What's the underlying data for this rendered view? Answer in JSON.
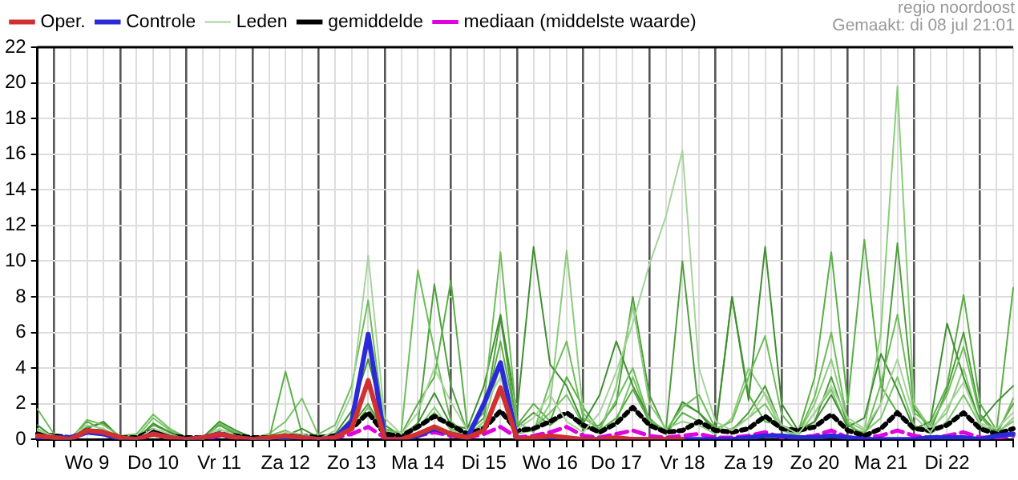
{
  "chart_data": {
    "type": "line",
    "annotations": [
      "regio noordoost",
      "Gemaakt: di 08 jul 21:01"
    ],
    "categories": [
      null,
      null,
      null,
      "Wo 9",
      null,
      null,
      null,
      "Do 10",
      null,
      null,
      null,
      "Vr 11",
      null,
      null,
      null,
      "Za 12",
      null,
      null,
      null,
      "Zo 13",
      null,
      null,
      null,
      "Ma 14",
      null,
      null,
      null,
      "Di 15",
      null,
      null,
      null,
      "Wo 16",
      null,
      null,
      null,
      "Do 17",
      null,
      null,
      null,
      "Vr 18",
      null,
      null,
      null,
      "Za 19",
      null,
      null,
      null,
      "Zo 20",
      null,
      null,
      null,
      "Ma 21",
      null,
      null,
      null,
      "Di 22",
      null,
      null,
      null,
      null
    ],
    "ylim": [
      0,
      22
    ],
    "yticks": [
      0,
      2,
      4,
      6,
      8,
      10,
      12,
      14,
      16,
      18,
      20,
      22
    ],
    "grid": true,
    "legend": "top left",
    "marker": "none",
    "series": [
      {
        "name": "Oper.",
        "color": "#d03030",
        "line_style": "solid",
        "values": [
          0.2,
          0.1,
          0,
          0.5,
          0.4,
          0.1,
          0,
          0.3,
          0.1,
          0,
          0.1,
          0.3,
          0.1,
          0,
          0.1,
          0.2,
          0.1,
          0,
          0.1,
          0.6,
          3.3,
          0,
          0,
          0.3,
          0.7,
          0.3,
          0.1,
          0.5,
          2.9,
          0,
          0.1,
          0.2,
          0.1,
          0,
          0,
          0.1,
          0,
          0,
          0,
          0,
          null,
          null,
          null,
          null,
          null,
          null,
          null,
          null,
          null,
          null,
          null,
          null,
          null,
          null,
          null,
          null,
          null,
          null,
          null,
          null
        ]
      },
      {
        "name": "Controle",
        "color": "#2a2ad8",
        "line_style": "solid",
        "values": [
          0.1,
          0.1,
          0.1,
          0.4,
          0.3,
          0,
          0,
          0.3,
          0.1,
          0,
          0.1,
          0.3,
          0.1,
          0,
          0,
          0.1,
          0.1,
          0,
          0.1,
          1.0,
          5.9,
          0,
          0,
          0.2,
          0.6,
          0.3,
          0.1,
          2.0,
          4.3,
          0,
          0,
          0,
          0,
          0,
          0,
          0,
          0,
          0,
          0,
          0,
          0,
          0,
          0,
          0.1,
          0.2,
          0.2,
          0.1,
          0.1,
          0.2,
          0.1,
          0,
          0,
          0,
          0,
          0.1,
          0.1,
          0.1,
          0,
          0.2,
          0.3
        ]
      },
      {
        "name": "Leden",
        "color": "#a6d49a",
        "line_style": "solid",
        "values": [
          0.5,
          0.2,
          0.1,
          0.8,
          0.6,
          0.1,
          0,
          0.6,
          0.3,
          0,
          0.1,
          0.6,
          0.2,
          0,
          0,
          0.4,
          0.3,
          0,
          0.5,
          2.5,
          10.3,
          1.2,
          0.3,
          1.5,
          4.0,
          2.1,
          0.5,
          1.8,
          3.5,
          0.6,
          1.2,
          2.5,
          1.0,
          0.4,
          1.5,
          3.8,
          6.5,
          9.8,
          12.5,
          16.2,
          4.0,
          1.0,
          0.5,
          1.2,
          2.6,
          0.8,
          0.3,
          1.5,
          3.0,
          1.2,
          0.6,
          2.0,
          4.5,
          1.3,
          0.4,
          1.8,
          3.2,
          0.9,
          0.6,
          1.5
        ]
      },
      {
        "name": "gemiddelde",
        "color": "#000000",
        "line_style": "dotted",
        "values": [
          0.3,
          0.2,
          0.1,
          0.5,
          0.4,
          0.1,
          0.1,
          0.5,
          0.2,
          0.1,
          0.1,
          0.3,
          0.2,
          0.1,
          0.1,
          0.2,
          0.2,
          0.1,
          0.2,
          0.6,
          1.5,
          0.3,
          0.2,
          0.7,
          1.3,
          0.8,
          0.3,
          0.6,
          1.6,
          0.5,
          0.6,
          1.0,
          1.5,
          0.8,
          0.4,
          0.9,
          1.8,
          0.8,
          0.4,
          0.5,
          1.0,
          0.5,
          0.4,
          0.6,
          1.3,
          0.6,
          0.5,
          0.7,
          1.4,
          0.5,
          0.2,
          0.6,
          1.5,
          0.6,
          0.5,
          0.8,
          1.5,
          0.6,
          0.3,
          0.6
        ]
      },
      {
        "name": "mediaan (middelste waarde)",
        "color": "#e000e0",
        "line_style": "dashed",
        "values": [
          0.2,
          0.1,
          0,
          0.4,
          0.3,
          0,
          0,
          0.4,
          0.2,
          0,
          0,
          0.2,
          0.1,
          0,
          0,
          0.1,
          0.1,
          0,
          0.1,
          0.3,
          0.7,
          0.1,
          0.1,
          0.2,
          0.4,
          0.2,
          0.1,
          0.3,
          0.7,
          0.1,
          0.2,
          0.4,
          0.7,
          0.2,
          0.1,
          0.3,
          0.5,
          0.2,
          0.1,
          0.2,
          0.3,
          0.1,
          0.1,
          0.2,
          0.4,
          0.1,
          0.1,
          0.2,
          0.5,
          0.1,
          0.1,
          0.2,
          0.5,
          0.2,
          0.1,
          0.2,
          0.4,
          0.1,
          0.1,
          0.2
        ]
      },
      {
        "color": "#6dbd5a",
        "line_style": "solid",
        "values": [
          1.7,
          0.3,
          0,
          1.1,
          0.8,
          0.2,
          0.3,
          1.4,
          0.6,
          0.1,
          0,
          0.9,
          0.4,
          0,
          0.2,
          0.5,
          0.1,
          0.3,
          0.8,
          3.0,
          7.8,
          0.5,
          0.4,
          9.5,
          5.0,
          1.0,
          0.3,
          2.0,
          10.5,
          1.0,
          0.4,
          3.2,
          5.5,
          1.2,
          0.6,
          2.2,
          4.0,
          1.1,
          0.5,
          1.8,
          2.5,
          0.6,
          1.0,
          3.5,
          5.8,
          1.4,
          0.3,
          2.4,
          6.0,
          0.9,
          0.2,
          3.1,
          7.0,
          1.5,
          0.8,
          2.5,
          5.2,
          1.3,
          0.2,
          2.3
        ]
      },
      {
        "color": "#3f8f30",
        "line_style": "solid",
        "values": [
          0.8,
          0.1,
          0,
          0.6,
          1.0,
          0.1,
          0,
          0.9,
          0.4,
          0,
          0.1,
          1.0,
          0.5,
          0.1,
          0,
          0.2,
          0.6,
          0.1,
          0.3,
          1.6,
          4.5,
          0.8,
          0.2,
          0.9,
          2.6,
          0.8,
          0.6,
          3.0,
          7.0,
          1.5,
          10.8,
          4.2,
          3.0,
          0.9,
          2.5,
          5.5,
          3.0,
          1.2,
          0.3,
          2.1,
          1.5,
          0.4,
          8.0,
          2.2,
          10.8,
          2.0,
          0.5,
          1.0,
          2.5,
          0.7,
          1.2,
          4.8,
          2.8,
          0.6,
          1.0,
          6.5,
          3.5,
          1.0,
          2.1,
          3.0
        ]
      },
      {
        "color": "#8bcc7c",
        "line_style": "solid",
        "values": [
          0.3,
          0,
          0,
          0.4,
          0.3,
          0,
          0,
          0.2,
          0.1,
          0,
          0,
          0.4,
          0.1,
          0,
          0.1,
          0,
          0.1,
          0,
          0.2,
          1.0,
          3.0,
          0.5,
          0.1,
          0.6,
          1.8,
          0.5,
          0.2,
          1.0,
          4.2,
          0.3,
          0.5,
          2.0,
          10.6,
          1.5,
          0.4,
          3.0,
          7.5,
          2.0,
          0.6,
          1.0,
          0.8,
          0.3,
          1.2,
          4.0,
          2.5,
          0.5,
          0.3,
          2.0,
          4.5,
          1.0,
          0.5,
          6.0,
          19.8,
          2.0,
          0.6,
          1.5,
          4.0,
          0.8,
          0.3,
          1.2
        ]
      },
      {
        "color": "#5aae46",
        "line_style": "solid",
        "values": [
          0.2,
          0,
          0,
          1.0,
          0.5,
          0,
          0.1,
          0.8,
          0.4,
          0,
          0,
          0.3,
          0.2,
          0,
          0,
          3.8,
          0.3,
          0,
          0.2,
          1.2,
          5.5,
          0.6,
          0.3,
          2.0,
          3.5,
          8.9,
          0.6,
          1.5,
          5.5,
          0.8,
          2.0,
          1.0,
          3.5,
          1.8,
          0.5,
          1.2,
          2.8,
          1.0,
          0.3,
          1.5,
          1.0,
          0.5,
          8.0,
          2.5,
          1.0,
          0.8,
          0.4,
          3.5,
          10.5,
          2.0,
          11.2,
          3.0,
          1.5,
          0.5,
          1.0,
          3.0,
          8.1,
          2.0,
          0.5,
          8.5
        ]
      },
      {
        "color": "#4f9e3e",
        "line_style": "solid",
        "values": [
          0.4,
          0.2,
          0.1,
          0.7,
          0.9,
          0.1,
          0,
          0.5,
          0.2,
          0,
          0.1,
          0.8,
          0.3,
          0,
          0,
          0.3,
          0.1,
          0.2,
          0.3,
          0.8,
          2.0,
          0.4,
          0.2,
          0.8,
          8.7,
          3.0,
          0.4,
          1.2,
          6.8,
          0.7,
          1.5,
          0.8,
          1.5,
          0.6,
          0.8,
          2.0,
          8.0,
          2.5,
          0.5,
          10.0,
          1.5,
          0.6,
          0.5,
          1.5,
          3.0,
          0.7,
          0.4,
          1.0,
          3.5,
          0.8,
          0.3,
          2.0,
          11.0,
          1.8,
          0.5,
          2.8,
          6.0,
          1.4,
          0.4,
          2.0
        ]
      },
      {
        "color": "#7cc46a",
        "line_style": "solid",
        "values": [
          0.6,
          0.1,
          0,
          0.5,
          0.4,
          0,
          0.1,
          1.2,
          0.5,
          0.1,
          0,
          0.5,
          0.4,
          0.1,
          0.3,
          1.0,
          2.3,
          0.2,
          0.1,
          0.6,
          1.8,
          0.3,
          0.2,
          0.6,
          1.5,
          0.6,
          0.3,
          0.8,
          2.5,
          0.4,
          0.6,
          1.5,
          2.5,
          0.8,
          0.3,
          1.0,
          3.5,
          1.0,
          0.4,
          2.0,
          1.5,
          0.4,
          0.6,
          1.2,
          2.0,
          0.5,
          0.2,
          1.5,
          2.8,
          0.6,
          0.4,
          1.2,
          3.5,
          0.8,
          0.3,
          1.0,
          2.5,
          0.8,
          0.4,
          1.0
        ]
      }
    ]
  }
}
